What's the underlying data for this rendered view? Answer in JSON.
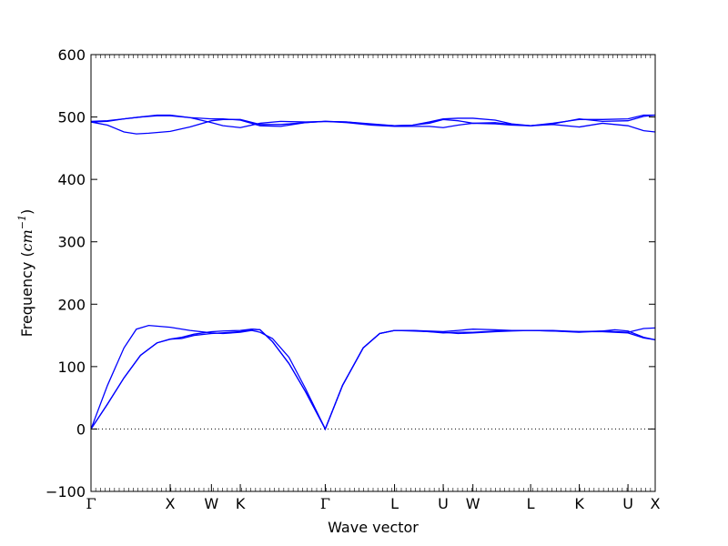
{
  "chart_data": {
    "type": "line",
    "xlabel": "Wave vector",
    "ylabel": {
      "text": "Frequency (",
      "unit_base": "cm",
      "unit_exp": "−1",
      "close": ")"
    },
    "ylim": [
      -100,
      600
    ],
    "yticks": [
      -100,
      0,
      100,
      200,
      300,
      400,
      500,
      600
    ],
    "grid": false,
    "legend": "none",
    "line_color": "#0000ff",
    "zero_line": {
      "y": 0,
      "style": "dotted",
      "color": "#000000"
    },
    "x_range": [
      0,
      6.84
    ],
    "special_points": [
      {
        "label": "Γ",
        "x": 0
      },
      {
        "label": "X",
        "x": 0.96
      },
      {
        "label": "W",
        "x": 1.46
      },
      {
        "label": "K",
        "x": 1.81
      },
      {
        "label": "Γ",
        "x": 2.84
      },
      {
        "label": "L",
        "x": 3.68
      },
      {
        "label": "U",
        "x": 4.27
      },
      {
        "label": "W",
        "x": 4.63
      },
      {
        "label": "L",
        "x": 5.33
      },
      {
        "label": "K",
        "x": 5.92
      },
      {
        "label": "U",
        "x": 6.51
      },
      {
        "label": "X",
        "x": 6.84
      }
    ],
    "series": [
      {
        "values": [
          [
            0,
            0
          ],
          [
            0.2,
            40
          ],
          [
            0.4,
            82
          ],
          [
            0.6,
            118
          ],
          [
            0.8,
            138
          ],
          [
            0.96,
            144
          ],
          [
            1.1,
            147
          ],
          [
            1.25,
            152
          ],
          [
            1.46,
            156
          ],
          [
            1.6,
            157
          ],
          [
            1.81,
            158
          ],
          [
            1.95,
            160
          ],
          [
            2.05,
            159
          ],
          [
            2.2,
            140
          ],
          [
            2.4,
            105
          ],
          [
            2.6,
            60
          ],
          [
            2.84,
            0
          ],
          [
            3.05,
            70
          ],
          [
            3.3,
            130
          ],
          [
            3.5,
            153
          ],
          [
            3.68,
            158
          ],
          [
            3.9,
            157
          ],
          [
            4.1,
            156
          ],
          [
            4.27,
            154
          ],
          [
            4.45,
            155
          ],
          [
            4.63,
            155
          ],
          [
            4.9,
            157
          ],
          [
            5.1,
            158
          ],
          [
            5.33,
            158
          ],
          [
            5.6,
            157
          ],
          [
            5.92,
            156
          ],
          [
            6.2,
            156
          ],
          [
            6.51,
            154
          ],
          [
            6.7,
            146
          ],
          [
            6.84,
            143
          ]
        ]
      },
      {
        "values": [
          [
            0,
            0
          ],
          [
            0.2,
            40
          ],
          [
            0.4,
            82
          ],
          [
            0.6,
            118
          ],
          [
            0.8,
            138
          ],
          [
            0.96,
            144
          ],
          [
            1.1,
            145
          ],
          [
            1.25,
            150
          ],
          [
            1.46,
            153
          ],
          [
            1.6,
            154
          ],
          [
            1.81,
            156
          ],
          [
            1.95,
            160
          ],
          [
            2.05,
            159
          ],
          [
            2.2,
            140
          ],
          [
            2.4,
            105
          ],
          [
            2.6,
            60
          ],
          [
            2.84,
            0
          ],
          [
            3.05,
            70
          ],
          [
            3.3,
            130
          ],
          [
            3.5,
            153
          ],
          [
            3.68,
            158
          ],
          [
            3.9,
            158
          ],
          [
            4.1,
            157
          ],
          [
            4.27,
            156
          ],
          [
            4.45,
            158
          ],
          [
            4.63,
            160
          ],
          [
            4.9,
            159
          ],
          [
            5.1,
            158
          ],
          [
            5.33,
            158
          ],
          [
            5.6,
            158
          ],
          [
            5.92,
            156
          ],
          [
            6.2,
            157
          ],
          [
            6.51,
            155
          ],
          [
            6.7,
            161
          ],
          [
            6.84,
            162
          ]
        ]
      },
      {
        "values": [
          [
            0,
            0
          ],
          [
            0.2,
            70
          ],
          [
            0.4,
            130
          ],
          [
            0.55,
            160
          ],
          [
            0.7,
            166
          ],
          [
            0.96,
            163
          ],
          [
            1.2,
            158
          ],
          [
            1.46,
            154
          ],
          [
            1.6,
            153
          ],
          [
            1.81,
            155
          ],
          [
            1.95,
            158
          ],
          [
            2.05,
            155
          ],
          [
            2.2,
            145
          ],
          [
            2.4,
            115
          ],
          [
            2.6,
            65
          ],
          [
            2.84,
            0
          ],
          [
            3.05,
            70
          ],
          [
            3.3,
            130
          ],
          [
            3.5,
            153
          ],
          [
            3.68,
            158
          ],
          [
            3.9,
            158
          ],
          [
            4.1,
            156
          ],
          [
            4.27,
            155
          ],
          [
            4.45,
            153
          ],
          [
            4.63,
            154
          ],
          [
            4.9,
            156
          ],
          [
            5.1,
            157
          ],
          [
            5.33,
            158
          ],
          [
            5.6,
            157
          ],
          [
            5.92,
            155
          ],
          [
            6.2,
            157
          ],
          [
            6.35,
            159
          ],
          [
            6.51,
            157
          ],
          [
            6.7,
            147
          ],
          [
            6.84,
            143
          ]
        ]
      },
      {
        "values": [
          [
            0,
            492
          ],
          [
            0.2,
            487
          ],
          [
            0.4,
            476
          ],
          [
            0.55,
            473
          ],
          [
            0.7,
            474
          ],
          [
            0.96,
            477
          ],
          [
            1.2,
            484
          ],
          [
            1.46,
            494
          ],
          [
            1.6,
            496
          ],
          [
            1.81,
            496
          ],
          [
            2.05,
            488
          ],
          [
            2.3,
            488
          ],
          [
            2.6,
            491
          ],
          [
            2.84,
            493
          ],
          [
            3.1,
            491
          ],
          [
            3.4,
            487
          ],
          [
            3.68,
            485
          ],
          [
            3.9,
            485
          ],
          [
            4.1,
            485
          ],
          [
            4.27,
            483
          ],
          [
            4.45,
            487
          ],
          [
            4.63,
            490
          ],
          [
            4.9,
            489
          ],
          [
            5.1,
            487
          ],
          [
            5.33,
            486
          ],
          [
            5.6,
            488
          ],
          [
            5.92,
            484
          ],
          [
            6.2,
            490
          ],
          [
            6.51,
            486
          ],
          [
            6.7,
            478
          ],
          [
            6.84,
            476
          ]
        ]
      },
      {
        "values": [
          [
            0,
            492
          ],
          [
            0.2,
            493
          ],
          [
            0.4,
            497
          ],
          [
            0.6,
            500
          ],
          [
            0.8,
            503
          ],
          [
            0.96,
            503
          ],
          [
            1.2,
            499
          ],
          [
            1.46,
            491
          ],
          [
            1.6,
            486
          ],
          [
            1.81,
            483
          ],
          [
            2.05,
            490
          ],
          [
            2.3,
            493
          ],
          [
            2.6,
            492
          ],
          [
            2.84,
            493
          ],
          [
            3.1,
            492
          ],
          [
            3.4,
            489
          ],
          [
            3.68,
            486
          ],
          [
            3.9,
            487
          ],
          [
            4.1,
            490
          ],
          [
            4.27,
            496
          ],
          [
            4.45,
            494
          ],
          [
            4.63,
            490
          ],
          [
            4.9,
            491
          ],
          [
            5.1,
            488
          ],
          [
            5.33,
            486
          ],
          [
            5.6,
            489
          ],
          [
            5.92,
            497
          ],
          [
            6.2,
            493
          ],
          [
            6.51,
            494
          ],
          [
            6.7,
            501
          ],
          [
            6.84,
            503
          ]
        ]
      },
      {
        "values": [
          [
            0,
            493
          ],
          [
            0.2,
            494
          ],
          [
            0.4,
            497
          ],
          [
            0.6,
            500
          ],
          [
            0.8,
            502
          ],
          [
            0.96,
            502
          ],
          [
            1.2,
            499
          ],
          [
            1.46,
            497
          ],
          [
            1.6,
            497
          ],
          [
            1.81,
            495
          ],
          [
            2.05,
            486
          ],
          [
            2.3,
            485
          ],
          [
            2.6,
            491
          ],
          [
            2.84,
            493
          ],
          [
            3.1,
            492
          ],
          [
            3.4,
            488
          ],
          [
            3.68,
            486
          ],
          [
            3.9,
            487
          ],
          [
            4.1,
            492
          ],
          [
            4.27,
            497
          ],
          [
            4.45,
            498
          ],
          [
            4.63,
            498
          ],
          [
            4.9,
            495
          ],
          [
            5.1,
            489
          ],
          [
            5.33,
            486
          ],
          [
            5.6,
            490
          ],
          [
            5.92,
            496
          ],
          [
            6.2,
            496
          ],
          [
            6.51,
            497
          ],
          [
            6.7,
            503
          ],
          [
            6.84,
            503
          ]
        ]
      }
    ]
  }
}
